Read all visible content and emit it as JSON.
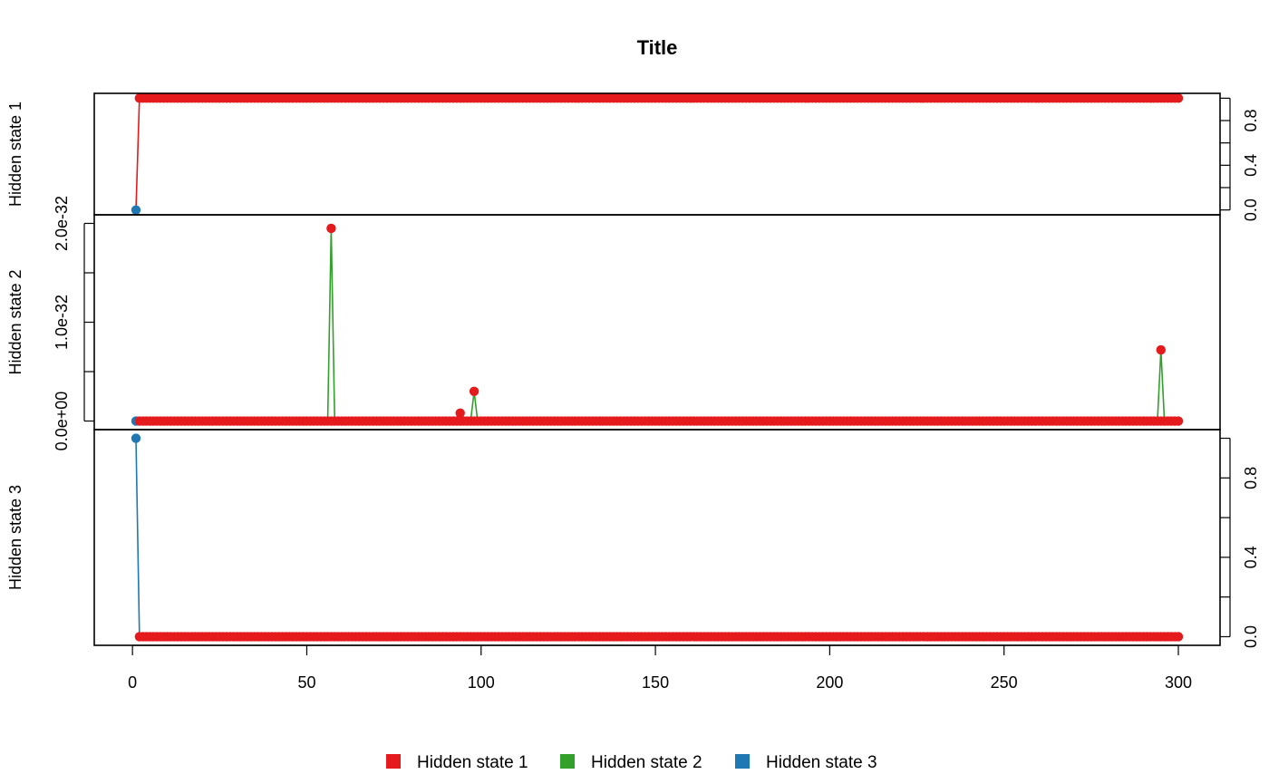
{
  "chart_data": {
    "type": "line",
    "title": "Title",
    "xlim": [
      1,
      300
    ],
    "x_ticks": [
      0,
      50,
      100,
      150,
      200,
      250,
      300
    ],
    "grid": false,
    "legend_position": "bottom-center",
    "colors": {
      "Hidden state 1": "#E41A1C",
      "Hidden state 2": "#33A02C",
      "Hidden state 3": "#1F78B4"
    },
    "legend": [
      "Hidden state 1",
      "Hidden state 2",
      "Hidden state 3"
    ],
    "panels": [
      {
        "ylabel": "Hidden state 1",
        "ylim": [
          0,
          1
        ],
        "ticks": [
          0,
          0.2,
          0.4,
          0.6,
          0.8,
          1.0
        ],
        "tick_labels": [
          "0.0",
          "",
          "0.4",
          "",
          "0.8",
          ""
        ],
        "axis_side": "right",
        "series": [
          {
            "name": "Hidden state 1",
            "x": [
              1,
              2,
              300
            ],
            "y": [
              0,
              1,
              1
            ]
          }
        ],
        "points": [
          {
            "x": 1,
            "y": 0,
            "state": "Hidden state 3"
          },
          {
            "x_from": 2,
            "x_to": 300,
            "y": 1,
            "state": "Hidden state 1"
          }
        ]
      },
      {
        "ylabel": "Hidden state 2",
        "ylim": [
          0,
          2e-32
        ],
        "ticks": [
          0,
          5e-33,
          1e-32,
          1.5e-32,
          2e-32
        ],
        "tick_labels": [
          "0.0e+00",
          "",
          "1.0e-32",
          "",
          "2.0e-32"
        ],
        "axis_side": "left",
        "series": [
          {
            "name": "Hidden state 2",
            "x": [
              1,
              2,
              18,
              20,
              22,
              28,
              29,
              30,
              56,
              57,
              58,
              93,
              94,
              95,
              97,
              98,
              99,
              228,
              229,
              230,
              294,
              295,
              296,
              300
            ],
            "y": [
              0,
              0,
              0,
              2e-34,
              0,
              0,
              1e-34,
              0,
              0,
              1.95e-32,
              0,
              0,
              8e-34,
              0,
              0,
              3e-33,
              0,
              0,
              1e-34,
              0,
              0,
              7.2e-33,
              0,
              0
            ]
          }
        ],
        "points": [
          {
            "x": 1,
            "y": 0,
            "state": "Hidden state 3"
          },
          {
            "x_from": 2,
            "x_to": 300,
            "y": 0,
            "state": "Hidden state 1"
          },
          {
            "x": 57,
            "y": 1.95e-32,
            "state": "Hidden state 1"
          },
          {
            "x": 94,
            "y": 8e-34,
            "state": "Hidden state 1"
          },
          {
            "x": 98,
            "y": 3e-33,
            "state": "Hidden state 1"
          },
          {
            "x": 295,
            "y": 7.2e-33,
            "state": "Hidden state 1"
          }
        ]
      },
      {
        "ylabel": "Hidden state 3",
        "ylim": [
          0,
          1
        ],
        "ticks": [
          0,
          0.2,
          0.4,
          0.6,
          0.8,
          1.0
        ],
        "tick_labels": [
          "0.0",
          "",
          "0.4",
          "",
          "0.8",
          ""
        ],
        "axis_side": "right",
        "series": [
          {
            "name": "Hidden state 3",
            "x": [
              1,
              2,
              300
            ],
            "y": [
              1,
              0,
              0
            ]
          }
        ],
        "points": [
          {
            "x": 1,
            "y": 1,
            "state": "Hidden state 3"
          },
          {
            "x_from": 2,
            "x_to": 300,
            "y": 0,
            "state": "Hidden state 1"
          }
        ]
      }
    ]
  }
}
